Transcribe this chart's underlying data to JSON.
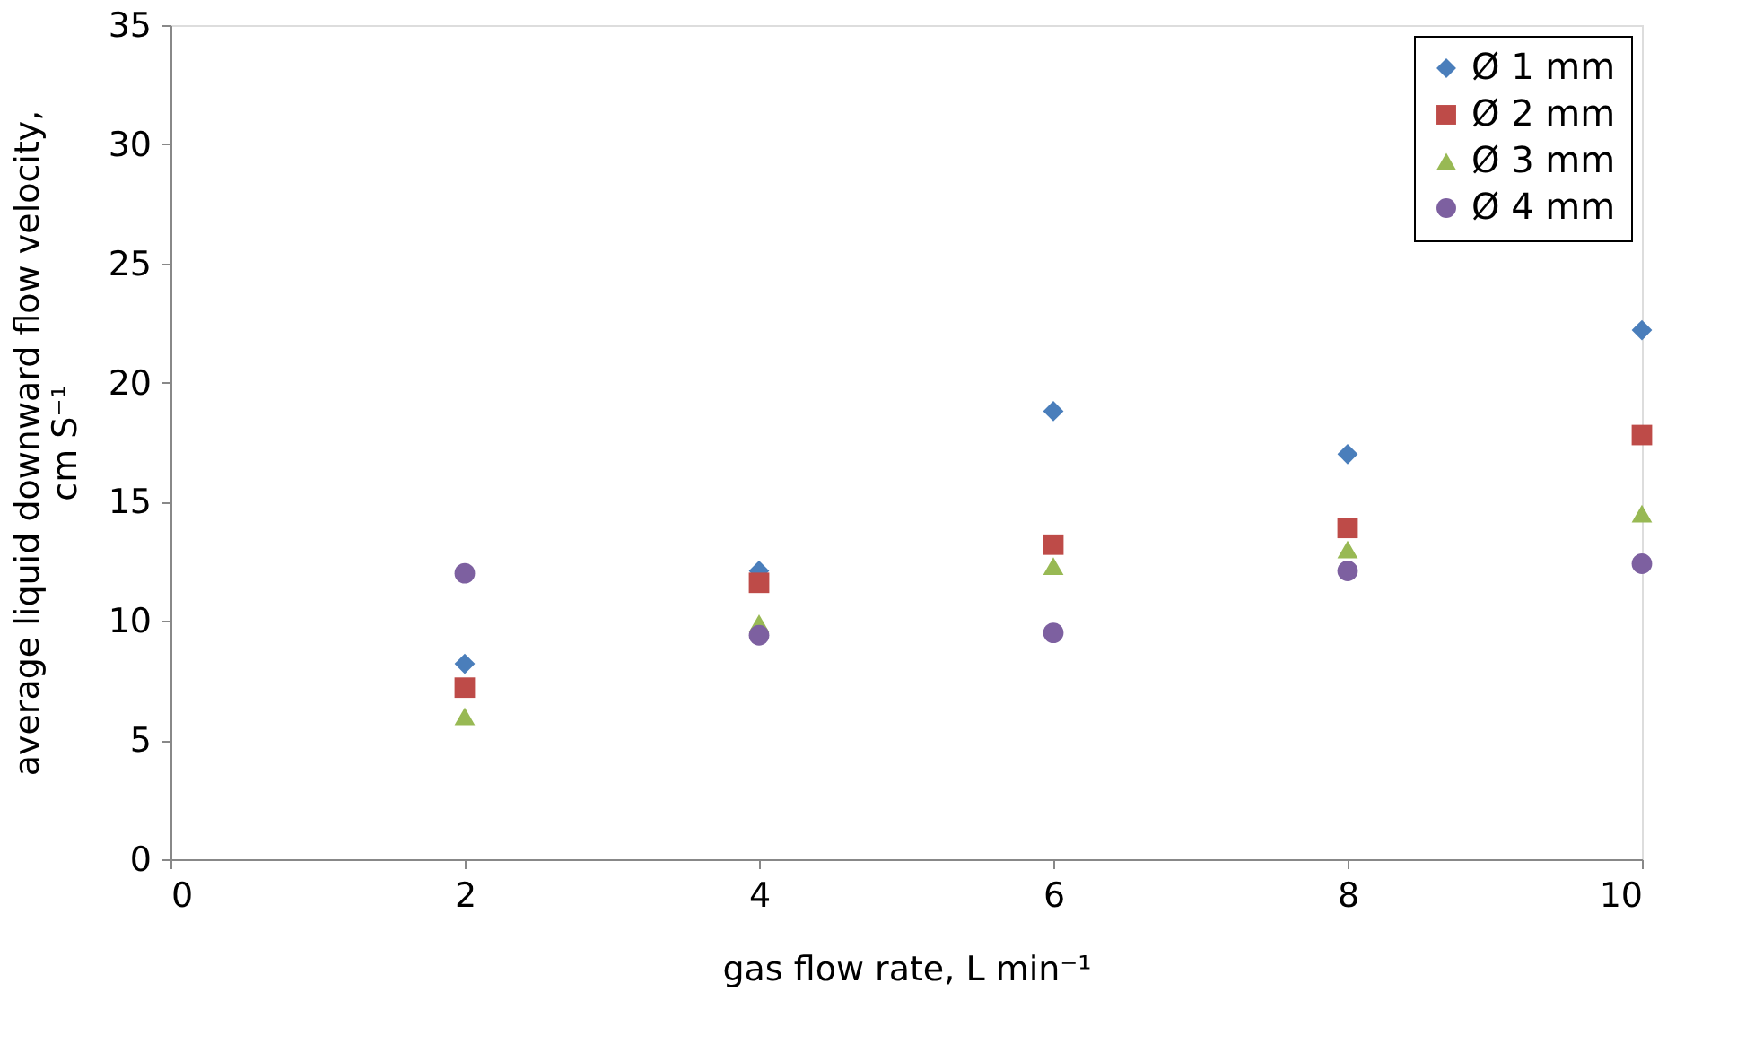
{
  "chart_data": {
    "type": "scatter",
    "xlabel": "gas flow rate, L min⁻¹",
    "ylabel": "average liquid downward flow velocity,\ncm S⁻¹",
    "x": [
      2,
      4,
      6,
      8,
      10
    ],
    "xlim": [
      0,
      10
    ],
    "xticks": [
      0,
      2,
      4,
      6,
      8,
      10
    ],
    "ylim": [
      0,
      35
    ],
    "yticks": [
      0,
      5,
      10,
      15,
      20,
      25,
      30,
      35
    ],
    "grid": false,
    "legend": "top right",
    "series": [
      {
        "name": "Ø 1 mm",
        "color": "#4a7ebb",
        "marker": "diamond",
        "values": [
          8.2,
          12.1,
          18.8,
          17.0,
          22.2
        ]
      },
      {
        "name": "Ø 2 mm",
        "color": "#be4b48",
        "marker": "square",
        "values": [
          7.2,
          11.6,
          13.2,
          13.9,
          17.8
        ]
      },
      {
        "name": "Ø 3 mm",
        "color": "#98b954",
        "marker": "triangle",
        "values": [
          6.0,
          9.9,
          12.3,
          13.0,
          14.5
        ]
      },
      {
        "name": "Ø 4 mm",
        "color": "#7d60a0",
        "marker": "circle",
        "values": [
          12.0,
          9.4,
          9.5,
          12.1,
          12.4
        ]
      }
    ]
  }
}
